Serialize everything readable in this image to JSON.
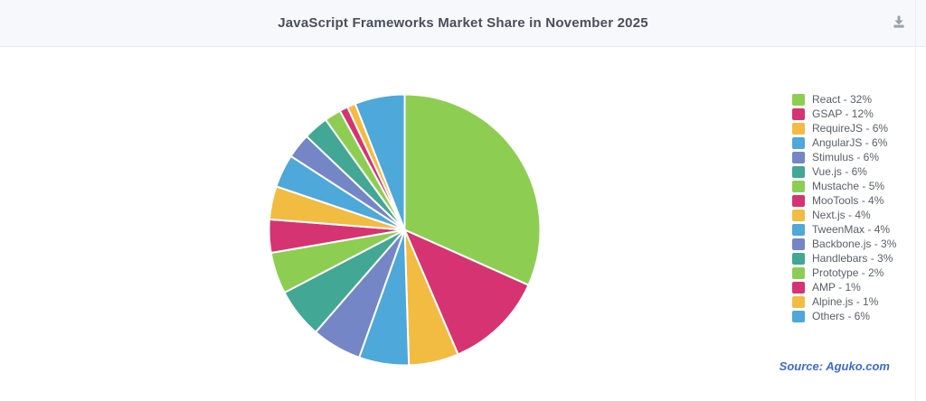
{
  "header": {
    "title": "JavaScript Frameworks Market Share in November 2025"
  },
  "toolbar": {
    "download_icon": "download-icon"
  },
  "footer": {
    "source": "Source: Aguko.com"
  },
  "colors": {
    "header_bg": "#f7f8fb",
    "header_border": "#e7e9ef",
    "title_text": "#4a4e5a",
    "legend_text": "#5a5f68",
    "source_text": "#3e6ad1",
    "download_icon": "#9aa1aa",
    "slice_border": "#ffffff"
  },
  "chart_data": {
    "type": "pie",
    "title": "JavaScript Frameworks Market Share in November 2025",
    "categories": [
      "React",
      "GSAP",
      "RequireJS",
      "AngularJS",
      "Stimulus",
      "Vue.js",
      "Mustache",
      "MooTools",
      "Next.js",
      "TweenMax",
      "Backbone.js",
      "Handlebars",
      "Prototype",
      "AMP",
      "Alpine.js",
      "Others"
    ],
    "values": [
      32,
      12,
      6,
      6,
      6,
      6,
      5,
      4,
      4,
      4,
      3,
      3,
      2,
      1,
      1,
      6
    ],
    "unit": "%",
    "colors": [
      "#8dce52",
      "#d63372",
      "#f2bc42",
      "#4ea8d9",
      "#7486c5",
      "#42a795",
      "#8dce52",
      "#d63372",
      "#f2bc42",
      "#4ea8d9",
      "#7486c5",
      "#42a795",
      "#8dce52",
      "#d63372",
      "#f2bc42",
      "#4ea8d9"
    ],
    "legend_position": "right",
    "start_angle_deg": 0,
    "direction": "clockwise",
    "label_separator": " - "
  }
}
